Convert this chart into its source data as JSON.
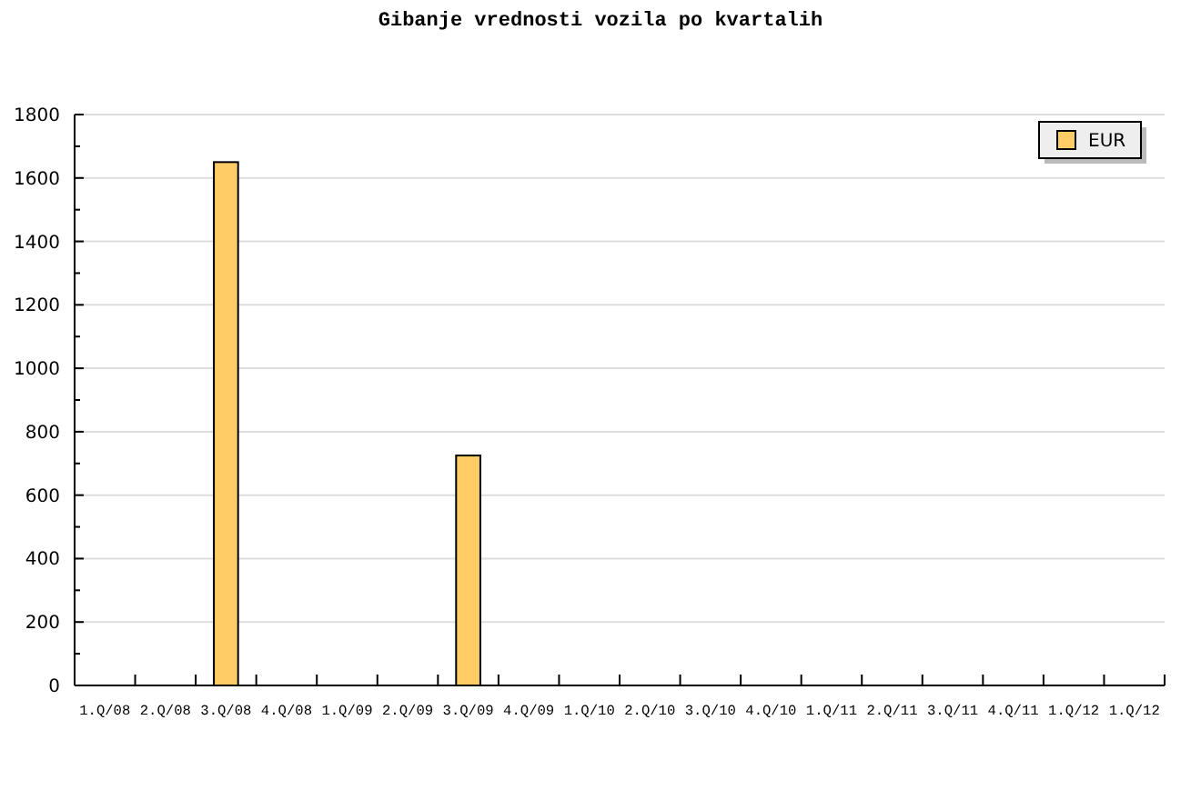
{
  "chart_data": {
    "type": "bar",
    "title": "Gibanje vrednosti vozila po kvartalih",
    "categories": [
      "1.Q/08",
      "2.Q/08",
      "3.Q/08",
      "4.Q/08",
      "1.Q/09",
      "2.Q/09",
      "3.Q/09",
      "4.Q/09",
      "1.Q/10",
      "2.Q/10",
      "3.Q/10",
      "4.Q/10",
      "1.Q/11",
      "2.Q/11",
      "3.Q/11",
      "4.Q/11",
      "1.Q/12",
      "1.Q/12"
    ],
    "series": [
      {
        "name": "EUR",
        "color": "#ffcc66",
        "values": [
          null,
          null,
          1650,
          null,
          null,
          null,
          725,
          null,
          null,
          null,
          null,
          null,
          null,
          null,
          null,
          null,
          null,
          null
        ]
      }
    ],
    "ylim": [
      0,
      1800
    ],
    "yticks": [
      0,
      {
        "value": 100,
        "label": null
      },
      200,
      {
        "value": 300,
        "label": null
      },
      400,
      {
        "value": 500,
        "label": null
      },
      600,
      {
        "value": 700,
        "label": null
      },
      800,
      {
        "value": 900,
        "label": null
      },
      1000,
      {
        "value": 1100,
        "label": null
      },
      1200,
      {
        "value": 1300,
        "label": null
      },
      1400,
      {
        "value": 1500,
        "label": null
      },
      1600,
      {
        "value": 1700,
        "label": null
      },
      1800
    ],
    "grid": "y",
    "legend": "top right"
  }
}
